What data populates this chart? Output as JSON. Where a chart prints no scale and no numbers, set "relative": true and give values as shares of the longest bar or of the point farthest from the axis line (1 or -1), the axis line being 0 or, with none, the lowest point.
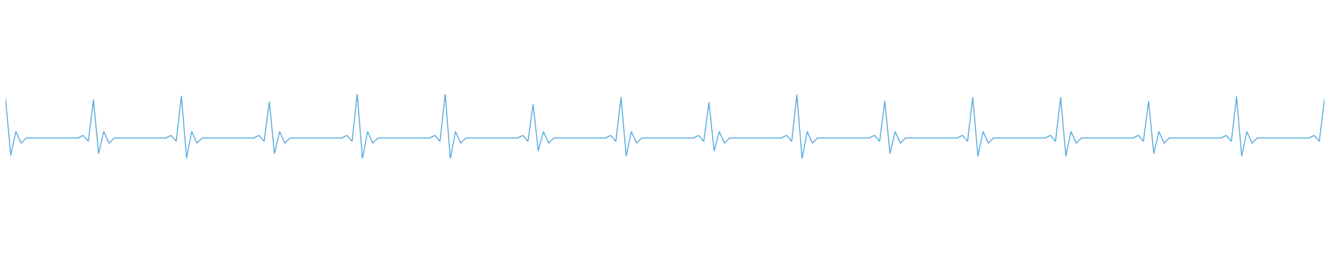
{
  "chart_data": {
    "type": "line",
    "relative": true,
    "color": "#5aade0",
    "marker": "none",
    "categories": [
      null,
      null,
      null,
      null,
      null,
      null,
      null,
      null,
      null,
      null,
      null,
      null,
      null,
      null,
      null,
      null,
      null,
      null,
      null,
      null,
      null,
      null,
      null,
      null,
      null,
      null,
      null,
      null,
      null,
      null,
      null,
      null,
      null,
      null,
      null,
      null,
      null,
      null,
      null,
      null,
      null,
      null,
      null,
      null,
      null,
      null,
      null,
      null,
      null,
      null,
      null,
      null,
      null,
      null,
      null,
      null,
      null,
      null,
      null,
      null,
      null,
      null,
      null,
      null,
      null,
      null,
      null,
      null,
      null,
      null,
      null,
      null,
      null,
      null,
      null,
      null,
      null,
      null,
      null,
      null,
      null,
      null,
      null,
      null,
      null,
      null,
      null,
      null,
      null,
      null,
      null,
      null,
      null,
      null,
      null,
      null,
      null,
      null,
      null,
      null,
      null,
      null,
      null,
      null,
      null,
      null,
      null,
      null,
      null,
      null,
      null,
      null,
      null,
      null,
      null,
      null,
      null,
      null,
      null,
      null,
      null,
      null,
      null,
      null,
      null,
      null,
      null,
      null,
      null,
      null,
      null,
      null,
      null,
      null,
      null,
      null,
      null,
      null,
      null,
      null,
      null,
      null,
      null,
      null,
      null,
      null,
      null,
      null,
      null,
      null,
      null,
      null,
      null,
      null,
      null,
      null,
      null,
      null,
      null,
      null,
      null,
      null,
      null,
      null,
      null,
      null,
      null,
      null,
      null,
      null,
      null,
      null,
      null,
      null,
      null,
      null,
      null,
      null,
      null,
      null,
      null,
      null,
      null,
      null,
      null,
      null,
      null,
      null,
      null,
      null,
      null,
      null,
      null,
      null,
      null,
      null,
      null,
      null,
      null,
      null,
      null,
      null,
      null,
      null,
      null,
      null,
      null,
      null,
      null,
      null,
      null,
      null,
      null,
      null,
      null,
      null,
      null,
      null,
      null,
      null,
      null,
      null,
      null,
      null,
      null,
      null,
      null,
      null,
      null,
      null,
      null,
      null,
      null,
      null,
      null,
      null,
      null,
      null,
      null,
      null,
      null,
      null,
      null,
      null,
      null,
      null,
      null,
      null,
      null,
      null,
      null,
      null,
      null,
      null,
      null,
      null
    ],
    "values": [
      0.93,
      0.05,
      0.42,
      0.24,
      0.32,
      0.32,
      0.32,
      0.32,
      0.32,
      0.32,
      0.32,
      0.32,
      0.32,
      0.32,
      0.32,
      0.36,
      0.27,
      0.91,
      0.08,
      0.42,
      0.24,
      0.32,
      0.32,
      0.32,
      0.32,
      0.32,
      0.32,
      0.32,
      0.32,
      0.32,
      0.32,
      0.32,
      0.36,
      0.27,
      0.97,
      0.01,
      0.42,
      0.24,
      0.32,
      0.32,
      0.32,
      0.32,
      0.32,
      0.32,
      0.32,
      0.32,
      0.32,
      0.32,
      0.32,
      0.36,
      0.27,
      0.88,
      0.08,
      0.42,
      0.24,
      0.32,
      0.32,
      0.32,
      0.32,
      0.32,
      0.32,
      0.32,
      0.32,
      0.32,
      0.32,
      0.32,
      0.36,
      0.27,
      1,
      0,
      0.42,
      0.24,
      0.32,
      0.32,
      0.32,
      0.32,
      0.32,
      0.32,
      0.32,
      0.32,
      0.32,
      0.32,
      0.32,
      0.36,
      0.27,
      1,
      0,
      0.42,
      0.24,
      0.32,
      0.32,
      0.32,
      0.32,
      0.32,
      0.32,
      0.32,
      0.32,
      0.32,
      0.32,
      0.32,
      0.36,
      0.27,
      0.84,
      0.12,
      0.42,
      0.24,
      0.32,
      0.32,
      0.32,
      0.32,
      0.32,
      0.32,
      0.32,
      0.32,
      0.32,
      0.32,
      0.32,
      0.36,
      0.27,
      0.95,
      0.04,
      0.42,
      0.24,
      0.32,
      0.32,
      0.32,
      0.32,
      0.32,
      0.32,
      0.32,
      0.32,
      0.32,
      0.32,
      0.32,
      0.36,
      0.27,
      0.87,
      0.12,
      0.42,
      0.24,
      0.32,
      0.32,
      0.32,
      0.32,
      0.32,
      0.32,
      0.32,
      0.32,
      0.32,
      0.32,
      0.32,
      0.36,
      0.27,
      0.99,
      0,
      0.42,
      0.24,
      0.32,
      0.32,
      0.32,
      0.32,
      0.32,
      0.32,
      0.32,
      0.32,
      0.32,
      0.32,
      0.32,
      0.36,
      0.27,
      0.89,
      0.08,
      0.42,
      0.24,
      0.32,
      0.32,
      0.32,
      0.32,
      0.32,
      0.32,
      0.32,
      0.32,
      0.32,
      0.32,
      0.32,
      0.36,
      0.27,
      0.95,
      0.04,
      0.42,
      0.24,
      0.32,
      0.32,
      0.32,
      0.32,
      0.32,
      0.32,
      0.32,
      0.32,
      0.32,
      0.32,
      0.32,
      0.36,
      0.27,
      0.95,
      0.04,
      0.42,
      0.24,
      0.32,
      0.32,
      0.32,
      0.32,
      0.32,
      0.32,
      0.32,
      0.32,
      0.32,
      0.32,
      0.32,
      0.36,
      0.27,
      0.89,
      0.08,
      0.42,
      0.24,
      0.32,
      0.32,
      0.32,
      0.32,
      0.32,
      0.32,
      0.32,
      0.32,
      0.32,
      0.32,
      0.32,
      0.36,
      0.27,
      0.96,
      0.04,
      0.42,
      0.24,
      0.32,
      0.32,
      0.32,
      0.32,
      0.32,
      0.32,
      0.32,
      0.32,
      0.32,
      0.32,
      0.32,
      0.36,
      0.27,
      0.92
    ]
  }
}
